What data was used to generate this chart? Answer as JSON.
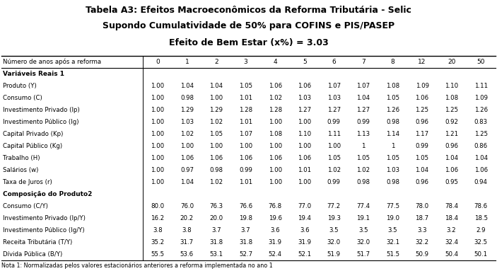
{
  "title1": "Tabela A3: Efeitos Macroeconômicos da Reforma Tributária - Selic",
  "title2": "Supondo Cumulatividade de 50% para COFINS e PIS/PASEP",
  "title3": "Efeito de Bem Estar (x%) = 3.03",
  "header_row": [
    "Número de anos após a reforma",
    "0",
    "1",
    "2",
    "3",
    "4",
    "5",
    "6",
    "7",
    "8",
    "12",
    "20",
    "50"
  ],
  "section1_label": "Variáveis Reais 1",
  "section2_label": "Composição do Produto2",
  "rows": [
    [
      "Produto (Y)",
      "1.00",
      "1.04",
      "1.04",
      "1.05",
      "1.06",
      "1.06",
      "1.07",
      "1.07",
      "1.08",
      "1.09",
      "1.10",
      "1.11"
    ],
    [
      "Consumo (C)",
      "1.00",
      "0.98",
      "1.00",
      "1.01",
      "1.02",
      "1.03",
      "1.03",
      "1.04",
      "1.05",
      "1.06",
      "1.08",
      "1.09"
    ],
    [
      "Investimento Privado (Ip)",
      "1.00",
      "1.29",
      "1.29",
      "1.28",
      "1.28",
      "1.27",
      "1.27",
      "1.27",
      "1.26",
      "1.25",
      "1.25",
      "1.26"
    ],
    [
      "Investimento Público (Ig)",
      "1.00",
      "1.03",
      "1.02",
      "1.01",
      "1.00",
      "1.00",
      "0.99",
      "0.99",
      "0.98",
      "0.96",
      "0.92",
      "0.83"
    ],
    [
      "Capital Privado (Kp)",
      "1.00",
      "1.02",
      "1.05",
      "1.07",
      "1.08",
      "1.10",
      "1.11",
      "1.13",
      "1.14",
      "1.17",
      "1.21",
      "1.25"
    ],
    [
      "Capital Público (Kg)",
      "1.00",
      "1.00",
      "1.00",
      "1.00",
      "1.00",
      "1.00",
      "1.00",
      "1",
      "1",
      "0.99",
      "0.96",
      "0.86"
    ],
    [
      "Trabalho (H)",
      "1.00",
      "1.06",
      "1.06",
      "1.06",
      "1.06",
      "1.06",
      "1.05",
      "1.05",
      "1.05",
      "1.05",
      "1.04",
      "1.04"
    ],
    [
      "Salários (w)",
      "1.00",
      "0.97",
      "0.98",
      "0.99",
      "1.00",
      "1.01",
      "1.02",
      "1.02",
      "1.03",
      "1.04",
      "1.06",
      "1.06"
    ],
    [
      "Taxa de Juros (r)",
      "1.00",
      "1.04",
      "1.02",
      "1.01",
      "1.00",
      "1.00",
      "0.99",
      "0.98",
      "0.98",
      "0.96",
      "0.95",
      "0.94"
    ]
  ],
  "rows2": [
    [
      "Consumo (C/Y)",
      "80.0",
      "76.0",
      "76.3",
      "76.6",
      "76.8",
      "77.0",
      "77.2",
      "77.4",
      "77.5",
      "78.0",
      "78.4",
      "78.6"
    ],
    [
      "Investimento Privado (Ip/Y)",
      "16.2",
      "20.2",
      "20.0",
      "19.8",
      "19.6",
      "19.4",
      "19.3",
      "19.1",
      "19.0",
      "18.7",
      "18.4",
      "18.5"
    ],
    [
      "Investimento Público (Ig/Y)",
      "3.8",
      "3.8",
      "3.7",
      "3.7",
      "3.6",
      "3.6",
      "3.5",
      "3.5",
      "3.5",
      "3.3",
      "3.2",
      "2.9"
    ],
    [
      "Receita Tributária (T/Y)",
      "35.2",
      "31.7",
      "31.8",
      "31.8",
      "31.9",
      "31.9",
      "32.0",
      "32.0",
      "32.1",
      "32.2",
      "32.4",
      "32.5"
    ],
    [
      "Dívida Pública (B/Y)",
      "55.5",
      "53.6",
      "53.1",
      "52.7",
      "52.4",
      "52.1",
      "51.9",
      "51.7",
      "51.5",
      "50.9",
      "50.4",
      "50.1"
    ]
  ],
  "footnote": "Nota 1: Normalizadas pelos valores estacionários anteriores a reforma implementada no ano 1"
}
